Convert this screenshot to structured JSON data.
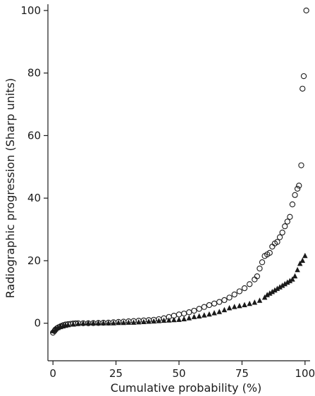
{
  "chart_data": {
    "type": "scatter",
    "title": "",
    "xlabel": "Cumulative probability (%)",
    "ylabel": "Radiographic progression (Sharp units)",
    "xlim": [
      -2,
      102
    ],
    "ylim": [
      -12,
      102
    ],
    "xticks": [
      0,
      25,
      50,
      75,
      100
    ],
    "yticks": [
      0,
      20,
      40,
      60,
      80,
      100
    ],
    "x_tick_labels": [
      "0",
      "25",
      "50",
      "75",
      "100"
    ],
    "y_tick_labels": [
      "0",
      "20",
      "40",
      "60",
      "80",
      "100"
    ],
    "grid": false,
    "legend": "none",
    "series": [
      {
        "marker": "open-circle",
        "color": "#1a1a1a",
        "points": [
          [
            0,
            -3
          ],
          [
            0.6,
            -2.5
          ],
          [
            1,
            -2
          ],
          [
            1.6,
            -1.6
          ],
          [
            2.2,
            -1.3
          ],
          [
            3,
            -1
          ],
          [
            3.6,
            -0.8
          ],
          [
            4.2,
            -0.6
          ],
          [
            5,
            -0.4
          ],
          [
            6,
            -0.3
          ],
          [
            7,
            -0.2
          ],
          [
            8,
            -0.1
          ],
          [
            9,
            -0.05
          ],
          [
            10,
            0
          ],
          [
            12,
            0
          ],
          [
            14,
            0
          ],
          [
            16,
            0.05
          ],
          [
            18,
            0.1
          ],
          [
            20,
            0.15
          ],
          [
            22,
            0.2
          ],
          [
            24,
            0.3
          ],
          [
            26,
            0.4
          ],
          [
            28,
            0.5
          ],
          [
            30,
            0.6
          ],
          [
            32,
            0.7
          ],
          [
            34,
            0.8
          ],
          [
            36,
            0.9
          ],
          [
            38,
            1
          ],
          [
            40,
            1.1
          ],
          [
            42,
            1.3
          ],
          [
            44,
            1.6
          ],
          [
            46,
            2
          ],
          [
            48,
            2.4
          ],
          [
            50,
            2.8
          ],
          [
            52,
            3.1
          ],
          [
            54,
            3.5
          ],
          [
            56,
            4
          ],
          [
            58,
            4.6
          ],
          [
            60,
            5.2
          ],
          [
            62,
            5.8
          ],
          [
            64,
            6.3
          ],
          [
            66,
            6.8
          ],
          [
            68,
            7.4
          ],
          [
            70,
            8.2
          ],
          [
            72,
            9.2
          ],
          [
            74,
            10.2
          ],
          [
            76,
            11.2
          ],
          [
            78,
            12.5
          ],
          [
            80,
            14
          ],
          [
            81,
            15
          ],
          [
            82,
            17.5
          ],
          [
            83,
            19.5
          ],
          [
            84,
            21.5
          ],
          [
            85,
            22
          ],
          [
            86,
            22.5
          ],
          [
            87,
            24.5
          ],
          [
            88,
            25.5
          ],
          [
            89,
            26
          ],
          [
            90,
            27.5
          ],
          [
            91,
            29
          ],
          [
            92,
            31
          ],
          [
            93,
            32.5
          ],
          [
            94,
            34
          ],
          [
            95,
            38
          ],
          [
            96,
            41
          ],
          [
            97,
            43
          ],
          [
            97.6,
            44
          ],
          [
            98.5,
            50.5
          ],
          [
            99,
            75
          ],
          [
            99.5,
            79
          ],
          [
            100.5,
            100
          ]
        ]
      },
      {
        "marker": "filled-triangle",
        "color": "#1a1a1a",
        "points": [
          [
            0,
            -2.5
          ],
          [
            1,
            -2
          ],
          [
            2,
            -1.5
          ],
          [
            3,
            -1.2
          ],
          [
            4,
            -1
          ],
          [
            5,
            -0.8
          ],
          [
            6,
            -0.6
          ],
          [
            8,
            -0.4
          ],
          [
            10,
            -0.2
          ],
          [
            12,
            -0.1
          ],
          [
            14,
            0
          ],
          [
            16,
            0
          ],
          [
            18,
            0
          ],
          [
            20,
            0
          ],
          [
            22,
            0
          ],
          [
            24,
            0
          ],
          [
            26,
            0.1
          ],
          [
            28,
            0.1
          ],
          [
            30,
            0.2
          ],
          [
            32,
            0.2
          ],
          [
            34,
            0.3
          ],
          [
            36,
            0.4
          ],
          [
            38,
            0.5
          ],
          [
            40,
            0.6
          ],
          [
            42,
            0.7
          ],
          [
            44,
            0.8
          ],
          [
            46,
            0.9
          ],
          [
            48,
            1
          ],
          [
            50,
            1.1
          ],
          [
            52,
            1.3
          ],
          [
            54,
            1.6
          ],
          [
            56,
            2
          ],
          [
            58,
            2.2
          ],
          [
            60,
            2.5
          ],
          [
            62,
            2.8
          ],
          [
            64,
            3.2
          ],
          [
            66,
            3.6
          ],
          [
            68,
            4.2
          ],
          [
            70,
            4.8
          ],
          [
            72,
            5.2
          ],
          [
            74,
            5.5
          ],
          [
            76,
            5.8
          ],
          [
            78,
            6.2
          ],
          [
            80,
            6.6
          ],
          [
            82,
            7.2
          ],
          [
            84,
            8.2
          ],
          [
            85,
            9
          ],
          [
            86,
            9.5
          ],
          [
            87,
            10
          ],
          [
            88,
            10.5
          ],
          [
            89,
            11
          ],
          [
            90,
            11.5
          ],
          [
            91,
            12
          ],
          [
            92,
            12.5
          ],
          [
            93,
            13
          ],
          [
            94,
            13.5
          ],
          [
            95,
            14
          ],
          [
            96,
            15
          ],
          [
            97,
            17
          ],
          [
            98,
            19
          ],
          [
            99,
            20
          ],
          [
            100,
            21.5
          ]
        ]
      }
    ]
  }
}
